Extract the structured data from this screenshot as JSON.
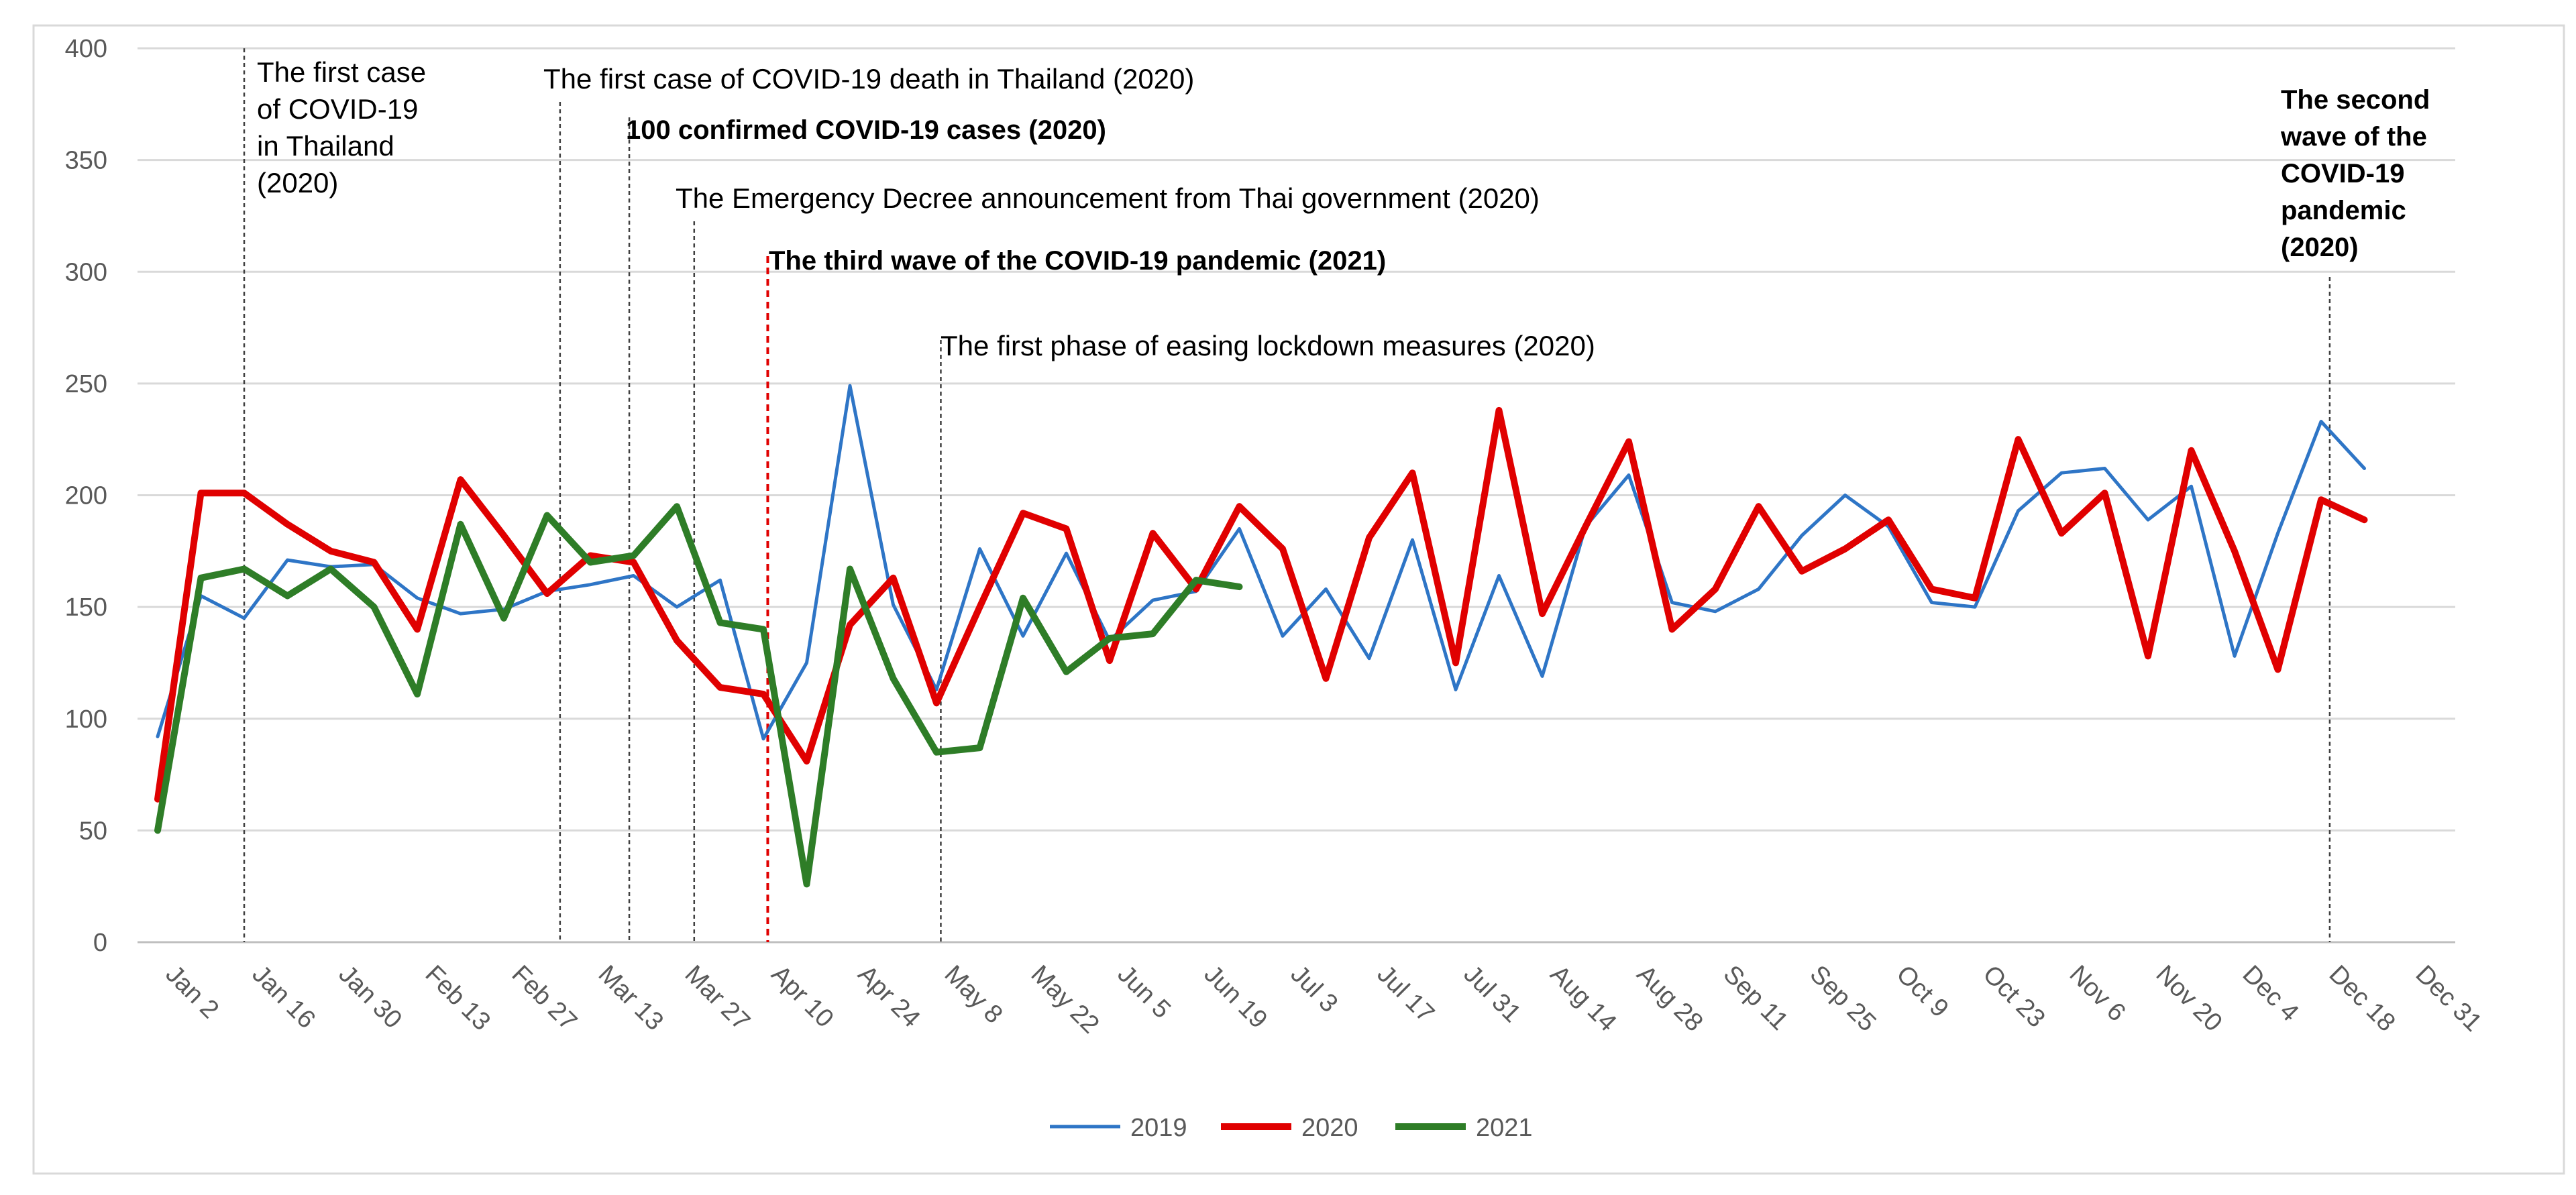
{
  "chart_data": {
    "type": "line",
    "title": "",
    "xlabel": "",
    "ylabel": "",
    "ylim": [
      0,
      400
    ],
    "y_ticks": [
      0,
      50,
      100,
      150,
      200,
      250,
      300,
      350,
      400
    ],
    "grid": true,
    "legend_position": "bottom-center",
    "x_ticks": [
      "Jan 2",
      "Jan 16",
      "Jan 30",
      "Feb 13",
      "Feb 27",
      "Mar 13",
      "Mar 27",
      "Apr 10",
      "Apr 24",
      "May 8",
      "May 22",
      "Jun 5",
      "Jun 19",
      "Jul 3",
      "Jul 17",
      "Jul 31",
      "Aug 14",
      "Aug 28",
      "Sep 11",
      "Sep 25",
      "Oct 9",
      "Oct 23",
      "Nov 6",
      "Nov 20",
      "Dec 4",
      "Dec 18",
      "Dec 31"
    ],
    "series": [
      {
        "name": "2019",
        "color": "#2e75c6",
        "values": [
          92,
          155,
          145,
          171,
          168,
          169,
          154,
          147,
          149,
          157,
          160,
          164,
          150,
          162,
          91,
          125,
          249,
          151,
          113,
          176,
          137,
          174,
          135,
          153,
          157,
          185,
          137,
          158,
          127,
          180,
          113,
          164,
          119,
          186,
          209,
          152,
          148,
          158,
          182,
          200,
          186,
          152,
          150,
          193,
          210,
          212,
          189,
          204,
          128,
          183,
          233,
          212
        ]
      },
      {
        "name": "2020",
        "color": "#e00000",
        "values": [
          64,
          201,
          201,
          187,
          175,
          170,
          140,
          207,
          182,
          156,
          173,
          170,
          135,
          114,
          111,
          81,
          142,
          163,
          107,
          150,
          192,
          185,
          126,
          183,
          158,
          195,
          176,
          118,
          181,
          210,
          125,
          238,
          147,
          186,
          224,
          140,
          158,
          195,
          166,
          176,
          189,
          158,
          154,
          225,
          183,
          201,
          128,
          220,
          175,
          122,
          198,
          189
        ]
      },
      {
        "name": "2021",
        "color": "#2e7d27",
        "values": [
          50,
          163,
          167,
          155,
          167,
          150,
          111,
          187,
          145,
          191,
          170,
          173,
          195,
          143,
          140,
          26,
          167,
          118,
          85,
          87,
          154,
          121,
          136,
          138,
          162,
          159
        ]
      }
    ],
    "annotations": [
      {
        "label": "The first case of COVID-19 in Thailand (2020)",
        "lines": [
          "The first case",
          "of COVID-19",
          "in Thailand",
          "(2020)"
        ],
        "week": 2,
        "bold": false
      },
      {
        "label": "The first case of COVID-19 death in Thailand (2020)",
        "lines": [
          "The first case of COVID-19 death in Thailand (2020)"
        ],
        "week": 9.3,
        "bold": false
      },
      {
        "label": "100 confirmed COVID-19 cases (2020)",
        "lines": [
          "100 confirmed COVID-19 cases (2020)"
        ],
        "week": 10.9,
        "bold": true
      },
      {
        "label": "The Emergency Decree announcement from Thai government (2020)",
        "lines": [
          "The Emergency Decree announcement from Thai government (2020)"
        ],
        "week": 12.4,
        "bold": false
      },
      {
        "label": "The third wave of the COVID-19 pandemic (2021)",
        "lines": [
          "The third wave of the COVID-19 pandemic (2021)"
        ],
        "week": 14.1,
        "bold": true,
        "color": "#e00000"
      },
      {
        "label": "The first phase of easing lockdown measures (2020)",
        "lines": [
          "The first phase of easing lockdown measures (2020)"
        ],
        "week": 18.1,
        "bold": false
      },
      {
        "label": "The second wave of the COVID-19 pandemic (2020)",
        "lines": [
          "The second",
          "wave of the",
          "COVID-19",
          "pandemic",
          "(2020)"
        ],
        "week": 50.2,
        "bold": true
      }
    ]
  }
}
